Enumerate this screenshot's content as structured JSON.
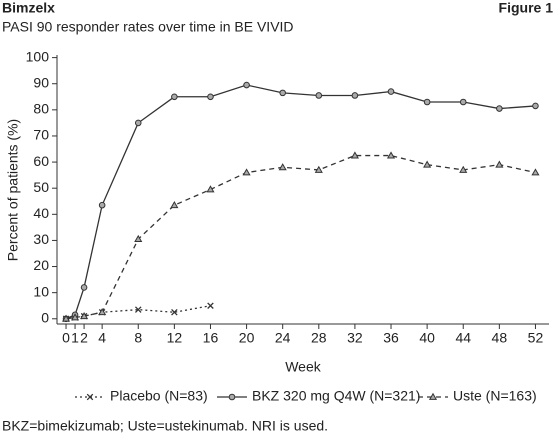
{
  "header": {
    "brand": "Bimzelx",
    "figure": "Figure 1"
  },
  "chart_data": {
    "type": "line",
    "subtitle": "PASI 90 responder rates over time in BE VIVID",
    "x_label": "Week",
    "y_label": "Percent of patients (%)",
    "x": [
      0,
      1,
      2,
      4,
      8,
      12,
      16,
      20,
      24,
      28,
      32,
      36,
      40,
      44,
      48,
      52
    ],
    "series": [
      {
        "name": "Placebo (N=83)",
        "color": "#333333",
        "dash": "dotted",
        "marker": "x",
        "values": [
          0,
          0.5,
          1,
          2.5,
          3.5,
          2.5,
          5,
          null,
          null,
          null,
          null,
          null,
          null,
          null,
          null,
          null
        ]
      },
      {
        "name": "BKZ 320 mg Q4W (N=321)",
        "color": "#333333",
        "dash": "solid",
        "marker": "circle",
        "values": [
          0,
          1.5,
          12,
          43.5,
          75,
          85,
          85,
          89.5,
          86.5,
          85.5,
          85.5,
          87,
          83,
          83,
          80.5,
          81.5
        ]
      },
      {
        "name": "Uste (N=163)",
        "color": "#333333",
        "dash": "dashed",
        "marker": "triangle",
        "values": [
          0,
          0.5,
          1,
          2.5,
          30.5,
          43.5,
          49.5,
          56,
          58,
          57,
          62.5,
          62.5,
          59,
          57,
          59,
          56
        ]
      }
    ],
    "xlim": [
      -1,
      53.5
    ],
    "ylim": [
      -2,
      101
    ],
    "xticks": [
      0,
      1,
      2,
      4,
      8,
      12,
      16,
      20,
      24,
      28,
      32,
      36,
      40,
      44,
      48,
      52
    ],
    "yticks": [
      0,
      10,
      20,
      30,
      40,
      50,
      60,
      70,
      80,
      90,
      100
    ],
    "grid": false,
    "legend": "bottom",
    "footnote": "BKZ=bimekizumab; Uste=ustekinumab. NRI is used."
  }
}
